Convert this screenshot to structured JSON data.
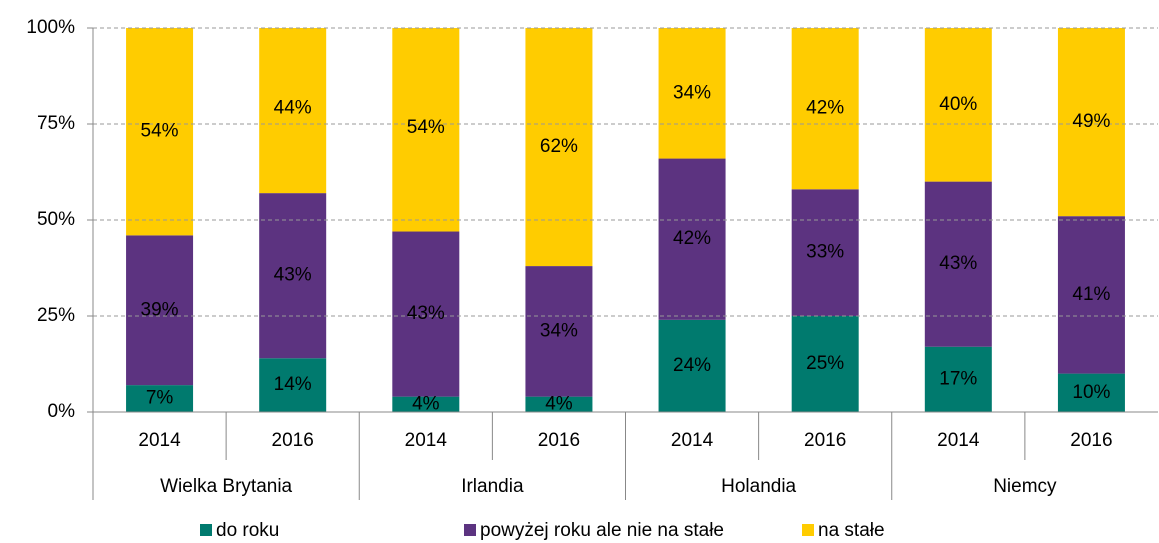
{
  "chart_data": {
    "type": "stacked_bar",
    "categories": [
      "2014",
      "2016",
      "2014",
      "2016",
      "2014",
      "2016",
      "2014",
      "2016"
    ],
    "groups": [
      "Wielka Brytania",
      "Irlandia",
      "Holandia",
      "Niemcy"
    ],
    "series": [
      {
        "name": "do roku",
        "color": "#007a6e",
        "values": [
          7,
          14,
          4,
          4,
          24,
          25,
          17,
          10
        ],
        "value_labels": [
          "7%",
          "14%",
          "4%",
          "4%",
          "24%",
          "25%",
          "17%",
          "10%"
        ]
      },
      {
        "name": "powyżej roku ale nie na stałe",
        "color": "#5c3380",
        "values": [
          39,
          43,
          43,
          34,
          42,
          33,
          43,
          41
        ],
        "value_labels": [
          "39%",
          "43%",
          "43%",
          "34%",
          "42%",
          "33%",
          "43%",
          "41%"
        ]
      },
      {
        "name": "na stałe",
        "color": "#ffcc00",
        "values": [
          54,
          44,
          54,
          62,
          34,
          42,
          40,
          49
        ],
        "value_labels": [
          "54%",
          "44%",
          "54%",
          "62%",
          "34%",
          "42%",
          "40%",
          "49%"
        ]
      }
    ],
    "ylim": [
      0,
      100
    ],
    "yticks": [
      {
        "value": 0,
        "label": "0%"
      },
      {
        "value": 25,
        "label": "25%"
      },
      {
        "value": 50,
        "label": "50%"
      },
      {
        "value": 75,
        "label": "75%"
      },
      {
        "value": 100,
        "label": "100%"
      }
    ],
    "grid": true,
    "legend": "bottom"
  }
}
